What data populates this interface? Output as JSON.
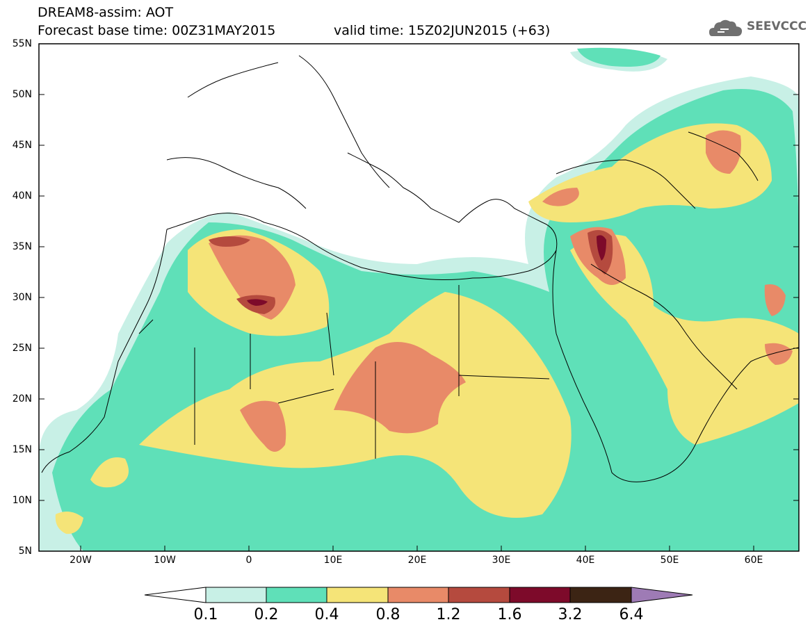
{
  "header": {
    "title_line1": "DREAM8-assim: AOT",
    "title_line2": "Forecast base time: 00Z31MAY2015",
    "valid_time": "valid time: 15Z02JUN2015 (+63)"
  },
  "logo": {
    "text": "SEEVCCC",
    "icon": "cloud-icon"
  },
  "map": {
    "lat_labels": [
      "55N",
      "50N",
      "45N",
      "40N",
      "35N",
      "30N",
      "25N",
      "20N",
      "15N",
      "10N",
      "5N"
    ],
    "lon_labels": [
      "20W",
      "10W",
      "0",
      "10E",
      "20E",
      "30E",
      "40E",
      "50E",
      "60E"
    ]
  },
  "colorbar": {
    "labels": [
      "0.1",
      "0.2",
      "0.4",
      "0.8",
      "1.2",
      "1.6",
      "3.2",
      "6.4"
    ],
    "colors": [
      "#ffffff",
      "#c8f0e6",
      "#5fe0b8",
      "#f5e478",
      "#e88a68",
      "#b54a3e",
      "#7d0a2a",
      "#3c2414",
      "#9e7bb5"
    ]
  }
}
